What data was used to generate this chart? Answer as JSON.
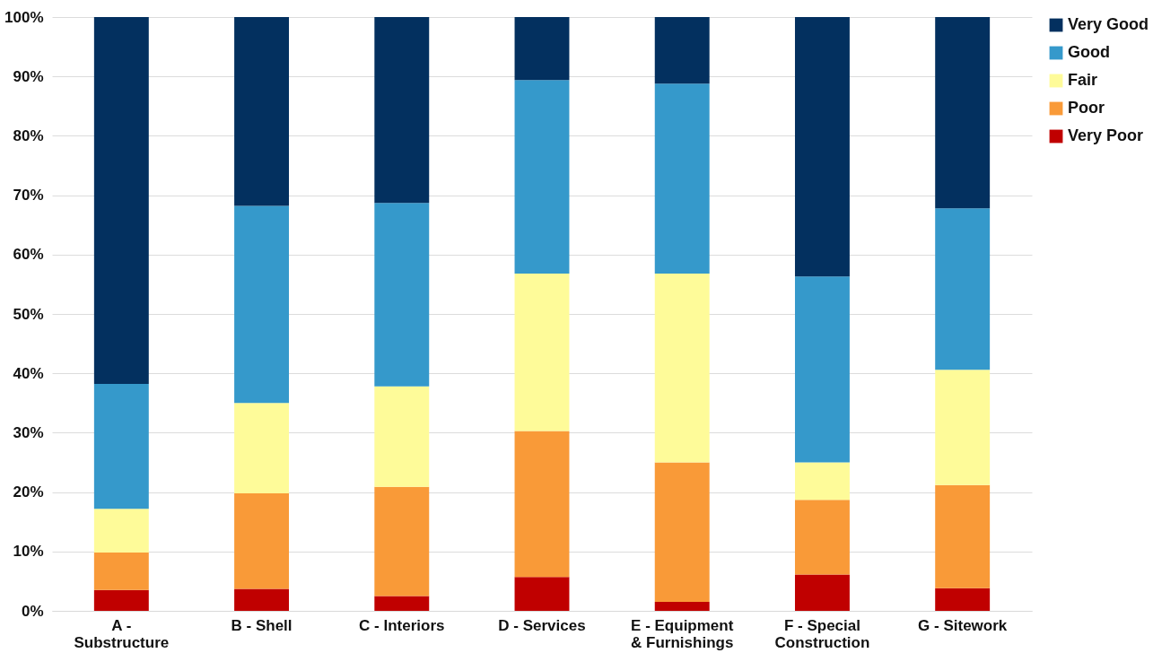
{
  "chart_data": {
    "type": "bar",
    "stacked": true,
    "categories": [
      "A - Substructure",
      "B - Shell",
      "C - Interiors",
      "D - Services",
      "E - Equipment & Furnishings",
      "F - Special Construction",
      "G - Sitework"
    ],
    "series": [
      {
        "name": "Very Poor",
        "color": "#c00000",
        "values": [
          3.5,
          3.7,
          2.5,
          5.7,
          1.5,
          6.1,
          3.8
        ]
      },
      {
        "name": "Poor",
        "color": "#f99a38",
        "values": [
          6.3,
          16.1,
          18.4,
          24.6,
          23.5,
          12.6,
          17.4
        ]
      },
      {
        "name": "Fair",
        "color": "#fefb99",
        "values": [
          7.4,
          15.2,
          16.9,
          26.5,
          31.8,
          6.3,
          19.4
        ]
      },
      {
        "name": "Good",
        "color": "#3599cb",
        "values": [
          21.0,
          33.2,
          30.9,
          32.6,
          32.0,
          31.3,
          27.2
        ]
      },
      {
        "name": "Very Good",
        "color": "#03305f",
        "values": [
          61.8,
          31.8,
          31.3,
          10.6,
          11.2,
          43.7,
          32.2
        ]
      }
    ],
    "ylim": [
      0,
      100
    ],
    "yticks": [
      {
        "value": 0,
        "label": "0%"
      },
      {
        "value": 10,
        "label": "10%"
      },
      {
        "value": 20,
        "label": "20%"
      },
      {
        "value": 30,
        "label": "30%"
      },
      {
        "value": 40,
        "label": "40%"
      },
      {
        "value": 50,
        "label": "50%"
      },
      {
        "value": 60,
        "label": "60%"
      },
      {
        "value": 70,
        "label": "70%"
      },
      {
        "value": 80,
        "label": "80%"
      },
      {
        "value": 90,
        "label": "90%"
      },
      {
        "value": 100,
        "label": "100%"
      }
    ],
    "grid": "y",
    "legend": "right"
  }
}
